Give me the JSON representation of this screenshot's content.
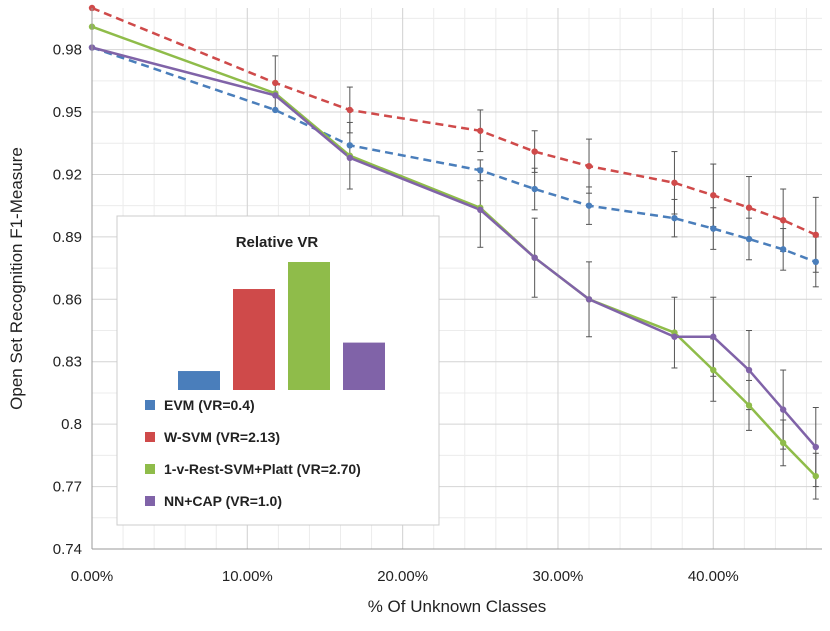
{
  "chart_data": {
    "type": "line",
    "title": "",
    "xlabel": "% Of Unknown Classes",
    "ylabel": "Open Set Recognition F1-Measure",
    "xlim": [
      0,
      0.47
    ],
    "ylim": [
      0.74,
      1.0
    ],
    "x_ticks": [
      0,
      0.1,
      0.2,
      0.3,
      0.4
    ],
    "x_tick_labels": [
      "0.00%",
      "10.00%",
      "20.00%",
      "30.00%",
      "40.00%"
    ],
    "y_ticks": [
      0.74,
      0.77,
      0.8,
      0.83,
      0.86,
      0.89,
      0.92,
      0.95,
      0.98
    ],
    "y_tick_labels": [
      "0.74",
      "0.77",
      "0.8",
      "0.83",
      "0.86",
      "0.89",
      "0.92",
      "0.95",
      "0.98"
    ],
    "grid": true,
    "series": [
      {
        "name": "EVM (VR=0.4)",
        "color": "#4a7ebb",
        "dashed": true,
        "x": [
          0,
          0.118,
          0.166,
          0.25,
          0.285,
          0.32,
          0.375,
          0.4,
          0.423,
          0.445,
          0.466
        ],
        "y": [
          0.981,
          0.951,
          0.934,
          0.922,
          0.913,
          0.905,
          0.899,
          0.894,
          0.889,
          0.884,
          0.878
        ],
        "err": [
          0,
          0,
          0,
          0.005,
          0.01,
          0.009,
          0.009,
          0.01,
          0.01,
          0.01,
          0.012
        ]
      },
      {
        "name": "W-SVM (VR=2.13)",
        "color": "#cf4a4a",
        "dashed": true,
        "x": [
          0,
          0.118,
          0.166,
          0.25,
          0.285,
          0.32,
          0.375,
          0.4,
          0.423,
          0.445,
          0.466
        ],
        "y": [
          1.0,
          0.964,
          0.951,
          0.941,
          0.931,
          0.924,
          0.916,
          0.91,
          0.904,
          0.898,
          0.891
        ],
        "err": [
          0,
          0.013,
          0.011,
          0.01,
          0.01,
          0.013,
          0.015,
          0.015,
          0.015,
          0.015,
          0.018
        ]
      },
      {
        "name": "1-v-Rest-SVM+Platt (VR=2.70)",
        "color": "#8fbc4a",
        "dashed": false,
        "x": [
          0,
          0.118,
          0.166,
          0.25,
          0.285,
          0.32,
          0.375,
          0.4,
          0.423,
          0.445,
          0.466
        ],
        "y": [
          0.991,
          0.959,
          0.929,
          0.904,
          0.88,
          0.86,
          0.844,
          0.826,
          0.809,
          0.791,
          0.775
        ],
        "err": [
          0,
          0,
          0.016,
          0.019,
          0.019,
          0.018,
          0.017,
          0.015,
          0.012,
          0.011,
          0.011
        ]
      },
      {
        "name": "NN+CAP (VR=1.0)",
        "color": "#8063a8",
        "dashed": false,
        "x": [
          0,
          0.118,
          0.166,
          0.25,
          0.285,
          0.32,
          0.375,
          0.4,
          0.423,
          0.445,
          0.466
        ],
        "y": [
          0.981,
          0.958,
          0.928,
          0.903,
          0.88,
          0.86,
          0.842,
          0.842,
          0.826,
          0.807,
          0.789
        ],
        "err": [
          0,
          0,
          0,
          0,
          0,
          0,
          0,
          0.019,
          0.019,
          0.019,
          0.019
        ]
      }
    ],
    "inset": {
      "title": "Relative VR",
      "bars": [
        {
          "name": "EVM",
          "value": 0.4,
          "color": "#4a7ebb"
        },
        {
          "name": "W-SVM",
          "value": 2.13,
          "color": "#cf4a4a"
        },
        {
          "name": "1-v-Rest-SVM+Platt",
          "value": 2.7,
          "color": "#8fbc4a"
        },
        {
          "name": "NN+CAP",
          "value": 1.0,
          "color": "#8063a8"
        }
      ]
    }
  }
}
